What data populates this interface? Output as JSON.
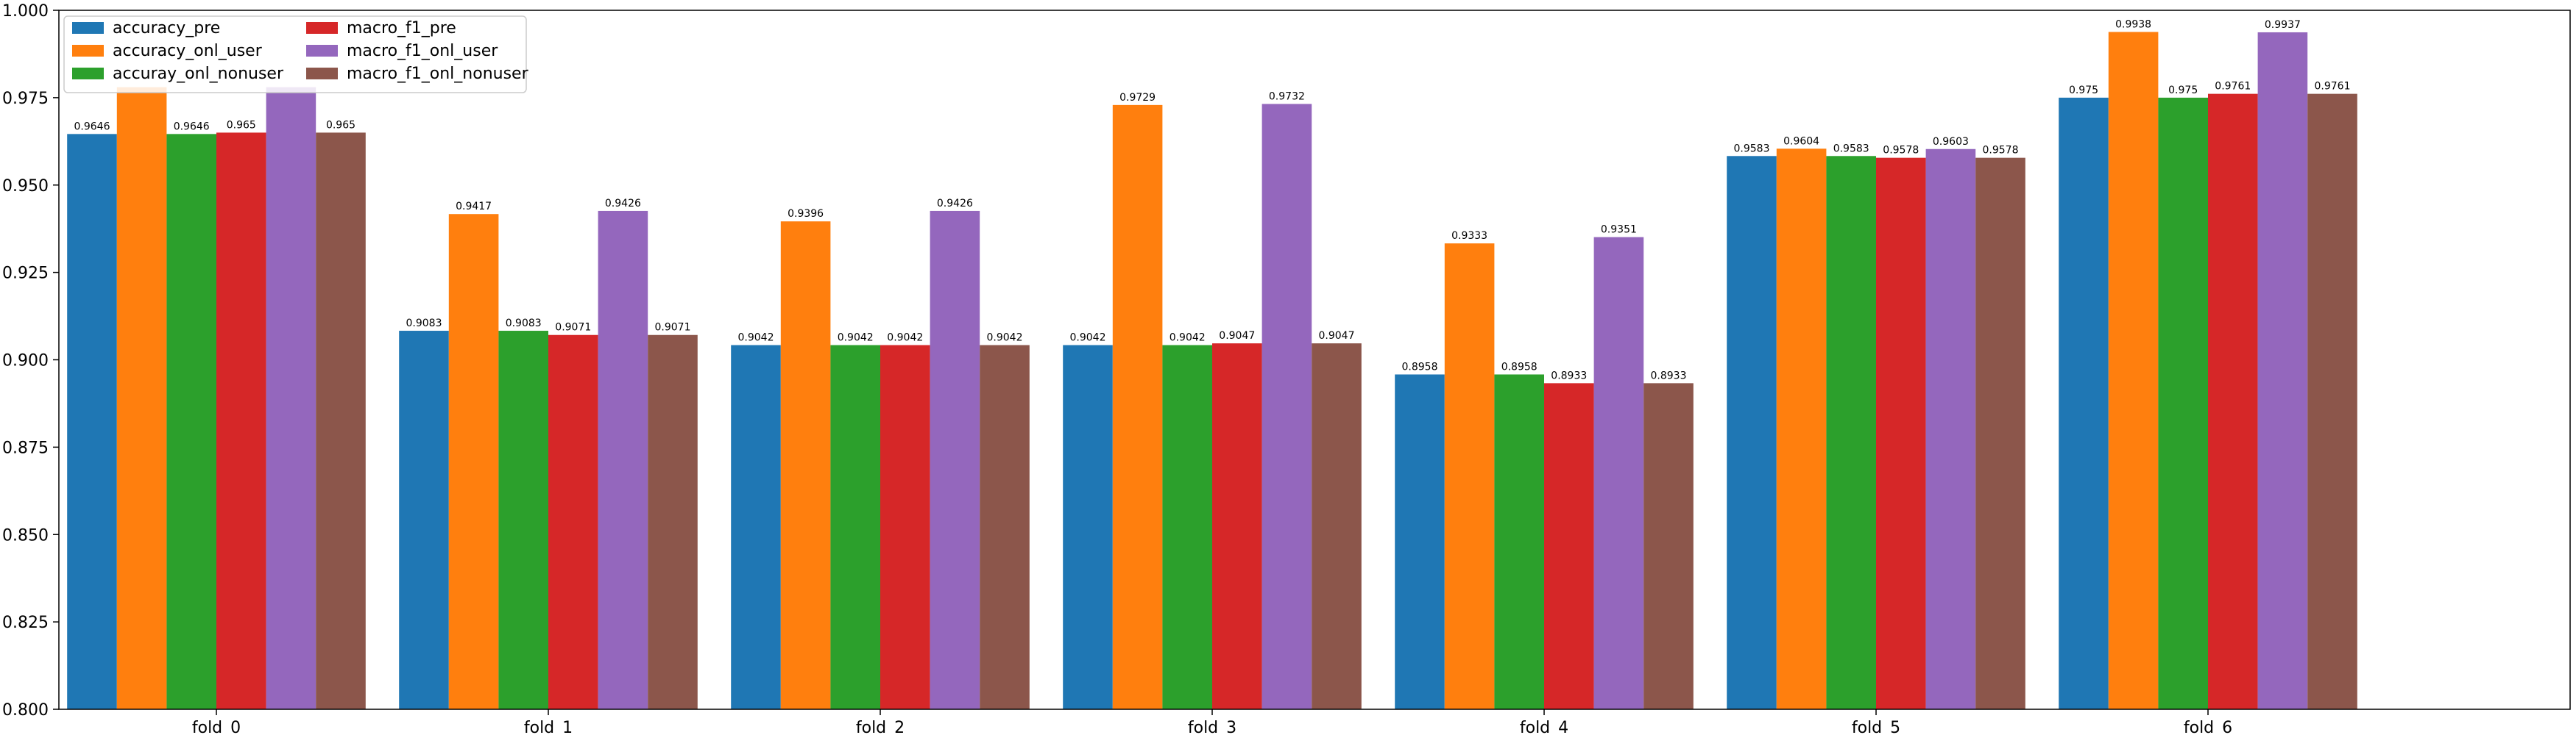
{
  "chart_data": {
    "type": "bar",
    "categories": [
      "fold_0",
      "fold_1",
      "fold_2",
      "fold_3",
      "fold_4",
      "fold_5",
      "fold_6"
    ],
    "series": [
      {
        "name": "accuracy_pre",
        "color": "#1f77b4",
        "values": [
          0.9646,
          0.9083,
          0.9042,
          0.9042,
          0.8958,
          0.9583,
          0.975
        ],
        "labels": [
          "0.9646",
          "0.9083",
          "0.9042",
          "0.9042",
          "0.8958",
          "0.9583",
          "0.975"
        ]
      },
      {
        "name": "accuracy_onl_user",
        "color": "#ff7f0e",
        "values": [
          0.978,
          0.9417,
          0.9396,
          0.9729,
          0.9333,
          0.9604,
          0.9938
        ],
        "labels": [
          "",
          "0.9417",
          "0.9396",
          "0.9729",
          "0.9333",
          "0.9604",
          "0.9938"
        ]
      },
      {
        "name": "accuray_onl_nonuser",
        "color": "#2ca02c",
        "values": [
          0.9646,
          0.9083,
          0.9042,
          0.9042,
          0.8958,
          0.9583,
          0.975
        ],
        "labels": [
          "0.9646",
          "0.9083",
          "0.9042",
          "0.9042",
          "0.8958",
          "0.9583",
          "0.975"
        ]
      },
      {
        "name": "macro_f1_pre",
        "color": "#d62728",
        "values": [
          0.965,
          0.9071,
          0.9042,
          0.9047,
          0.8933,
          0.9578,
          0.9761
        ],
        "labels": [
          "0.965",
          "0.9071",
          "0.9042",
          "0.9047",
          "0.8933",
          "0.9578",
          "0.9761"
        ]
      },
      {
        "name": "macro_f1_onl_user",
        "color": "#9467bd",
        "values": [
          0.978,
          0.9426,
          0.9426,
          0.9732,
          0.9351,
          0.9603,
          0.9937
        ],
        "labels": [
          "",
          "0.9426",
          "0.9426",
          "0.9732",
          "0.9351",
          "0.9603",
          "0.9937"
        ]
      },
      {
        "name": "macro_f1_onl_nonuser",
        "color": "#8c564b",
        "values": [
          0.965,
          0.9071,
          0.9042,
          0.9047,
          0.8933,
          0.9578,
          0.9761
        ],
        "labels": [
          "0.965",
          "0.9071",
          "0.9042",
          "0.9047",
          "0.8933",
          "0.9578",
          "0.9761"
        ]
      }
    ],
    "ylim": [
      0.8,
      1.0
    ],
    "yticks": [
      0.8,
      0.825,
      0.85,
      0.875,
      0.9,
      0.925,
      0.95,
      0.975,
      1.0
    ],
    "ytick_labels": [
      "0.800",
      "0.825",
      "0.850",
      "0.875",
      "0.900",
      "0.925",
      "0.950",
      "0.975",
      "1.000"
    ],
    "title": "",
    "xlabel": "",
    "ylabel": "",
    "grid": false,
    "legend_position": "top-left"
  }
}
